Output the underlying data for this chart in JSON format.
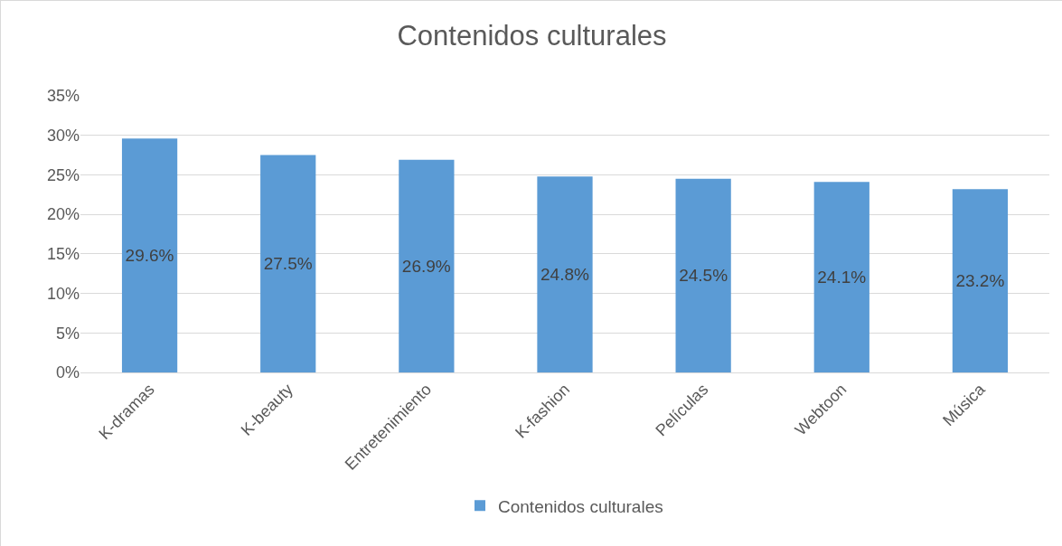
{
  "chart_data": {
    "type": "bar",
    "title": "Contenidos culturales",
    "categories": [
      "K-dramas",
      "K-beauty",
      "Entretenimiento",
      "K-fashion",
      "Películas",
      "Webtoon",
      "Música"
    ],
    "series": [
      {
        "name": "Contenidos culturales",
        "color": "#5b9bd5",
        "values": [
          29.6,
          27.5,
          26.9,
          24.8,
          24.5,
          24.1,
          23.2
        ],
        "value_labels": [
          "29.6%",
          "27.5%",
          "26.9%",
          "24.8%",
          "24.5%",
          "24.1%",
          "23.2%"
        ]
      }
    ],
    "ylim": [
      0,
      35
    ],
    "yticks": [
      {
        "value": 0,
        "label": "0%"
      },
      {
        "value": 5,
        "label": "5%"
      },
      {
        "value": 10,
        "label": "10%"
      },
      {
        "value": 15,
        "label": "15%"
      },
      {
        "value": 20,
        "label": "20%"
      },
      {
        "value": 25,
        "label": "25%"
      },
      {
        "value": 30,
        "label": "30%"
      },
      {
        "value": 35,
        "label": "35%"
      }
    ],
    "grid": "y",
    "legend": "bottom"
  }
}
